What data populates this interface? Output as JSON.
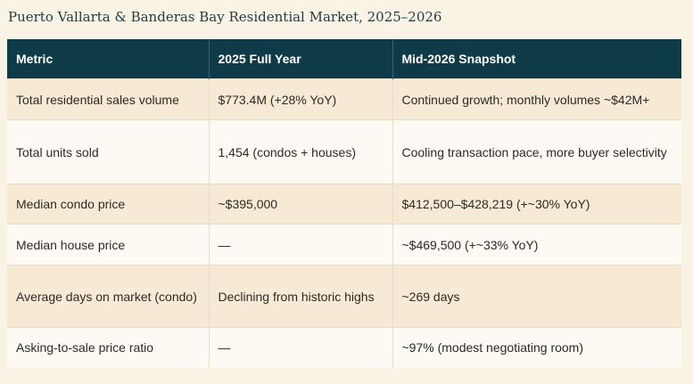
{
  "title": "Puerto Vallarta & Banderas Bay Residential Market, 2025–2026",
  "table": {
    "headers": [
      "Metric",
      "2025 Full Year",
      "Mid-2026 Snapshot"
    ],
    "rows": [
      {
        "metric": "Total residential sales volume",
        "full_year": "$773.4M (+28% YoY)",
        "snapshot": "Continued growth; monthly volumes ~$42M+"
      },
      {
        "metric": "Total units sold",
        "full_year": "1,454 (condos + houses)",
        "snapshot": "Cooling transaction pace, more buyer selectivity"
      },
      {
        "metric": "Median condo price",
        "full_year": "~$395,000",
        "snapshot": "$412,500–$428,219 (+~30% YoY)"
      },
      {
        "metric": "Median house price",
        "full_year": "—",
        "snapshot": "~$469,500 (+~33% YoY)"
      },
      {
        "metric": "Average days on market (condo)",
        "full_year": "Declining from historic highs",
        "snapshot": "~269 days"
      },
      {
        "metric": "Asking-to-sale price ratio",
        "full_year": "—",
        "snapshot": "~97% (modest negotiating room)"
      }
    ]
  }
}
